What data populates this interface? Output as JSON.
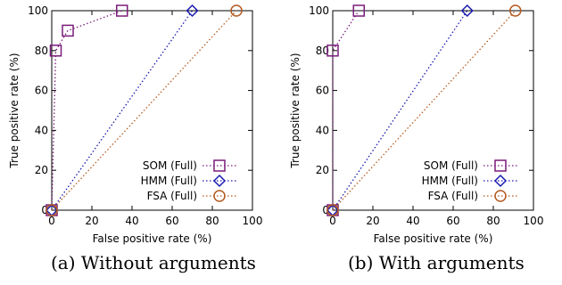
{
  "chart_data": [
    {
      "type": "line",
      "caption": "(a) Without arguments",
      "xlabel": "False positive rate (%)",
      "ylabel": "True positive rate (%)",
      "xlim": [
        0,
        100
      ],
      "ylim": [
        0,
        100
      ],
      "xticks": [
        0,
        20,
        40,
        60,
        80,
        100
      ],
      "yticks": [
        0,
        20,
        40,
        60,
        80,
        100
      ],
      "grid": false,
      "legend_position": "bottom-right",
      "series": [
        {
          "name": "SOM (Full)",
          "color": "#7b1c7b",
          "marker": "square",
          "x": [
            0,
            2,
            8,
            35
          ],
          "y": [
            0,
            80,
            90,
            100
          ]
        },
        {
          "name": "HMM (Full)",
          "color": "#1a1ab0",
          "marker": "diamond",
          "x": [
            0,
            70
          ],
          "y": [
            0,
            100
          ]
        },
        {
          "name": "FSA (Full)",
          "color": "#b35a1f",
          "marker": "circle",
          "x": [
            0,
            92
          ],
          "y": [
            0,
            100
          ]
        }
      ]
    },
    {
      "type": "line",
      "caption": "(b) With arguments",
      "xlabel": "False positive rate (%)",
      "ylabel": "True positive rate (%)",
      "xlim": [
        0,
        100
      ],
      "ylim": [
        0,
        100
      ],
      "xticks": [
        0,
        20,
        40,
        60,
        80,
        100
      ],
      "yticks": [
        0,
        20,
        40,
        60,
        80,
        100
      ],
      "grid": false,
      "legend_position": "bottom-right",
      "series": [
        {
          "name": "SOM (Full)",
          "color": "#7b1c7b",
          "marker": "square",
          "x": [
            0,
            0,
            13
          ],
          "y": [
            0,
            80,
            100
          ]
        },
        {
          "name": "HMM (Full)",
          "color": "#1a1ab0",
          "marker": "diamond",
          "x": [
            0,
            67
          ],
          "y": [
            0,
            100
          ]
        },
        {
          "name": "FSA (Full)",
          "color": "#b35a1f",
          "marker": "circle",
          "x": [
            0,
            91
          ],
          "y": [
            0,
            100
          ]
        }
      ]
    }
  ]
}
